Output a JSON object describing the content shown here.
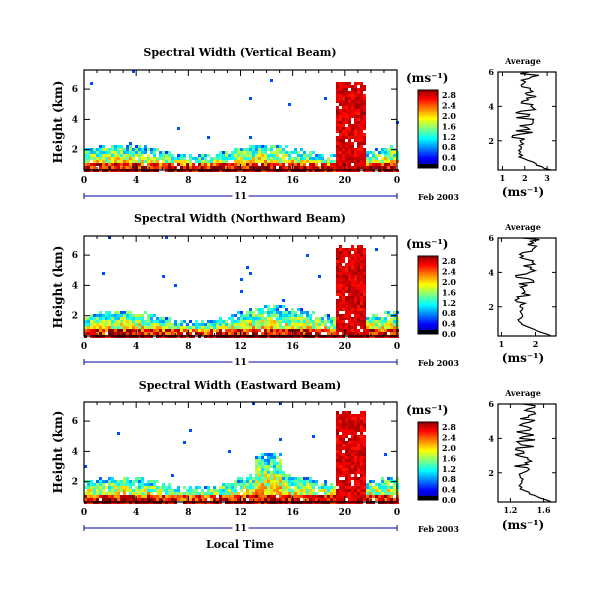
{
  "chart_data": [
    {
      "type": "heatmap",
      "title": "Spectral Width (Vertical Beam)",
      "ylabel": "Height (km)",
      "xticks": [
        "0",
        "4",
        "8",
        "12",
        "16",
        "20",
        "0"
      ],
      "yticks": [
        "2",
        "4",
        "6"
      ],
      "date_day": "11",
      "date_label": "Feb 2003",
      "colorbar": {
        "unit": "(ms⁻¹)",
        "ticks": [
          "0.0",
          "0.4",
          "0.8",
          "1.2",
          "1.6",
          "2.0",
          "2.4",
          "2.8"
        ]
      },
      "profile": {
        "title": "Average",
        "xticks": [
          "1",
          "2",
          "3"
        ],
        "yticks": [
          "2",
          "4",
          "6"
        ],
        "xlabel": "(ms⁻¹)",
        "xlim": [
          0.8,
          3.4
        ]
      }
    },
    {
      "type": "heatmap",
      "title": "Spectral Width (Northward Beam)",
      "ylabel": "Height (km)",
      "xticks": [
        "0",
        "4",
        "8",
        "12",
        "16",
        "20",
        "0"
      ],
      "yticks": [
        "2",
        "4",
        "6"
      ],
      "date_day": "11",
      "date_label": "Feb 2003",
      "colorbar": {
        "unit": "(ms⁻¹)",
        "ticks": [
          "0.0",
          "0.4",
          "0.8",
          "1.2",
          "1.6",
          "2.0",
          "2.4",
          "2.8"
        ]
      },
      "profile": {
        "title": "Average",
        "xticks": [
          "1",
          "2"
        ],
        "yticks": [
          "2",
          "4",
          "6"
        ],
        "xlabel": "(ms⁻¹)",
        "xlim": [
          0.9,
          2.6
        ]
      }
    },
    {
      "type": "heatmap",
      "title": "Spectral Width (Eastward Beam)",
      "ylabel": "Height (km)",
      "xlabel": "Local Time",
      "xticks": [
        "0",
        "4",
        "8",
        "12",
        "16",
        "20",
        "0"
      ],
      "yticks": [
        "2",
        "4",
        "6"
      ],
      "date_day": "11",
      "date_label": "Feb 2003",
      "colorbar": {
        "unit": "(ms⁻¹)",
        "ticks": [
          "0.0",
          "0.4",
          "0.8",
          "1.2",
          "1.6",
          "2.0",
          "2.4",
          "2.8"
        ]
      },
      "profile": {
        "title": "Average",
        "xticks": [
          "1.2",
          "1.6"
        ],
        "yticks": [
          "2",
          "4",
          "6"
        ],
        "xlabel": "(ms⁻¹)",
        "xlim": [
          1.05,
          1.75
        ]
      }
    }
  ],
  "colors": {
    "jet": [
      "#00007f",
      "#0000ff",
      "#0080ff",
      "#00ffff",
      "#80ff80",
      "#ffff00",
      "#ff8000",
      "#ff0000",
      "#7f0000"
    ],
    "frame": "#000000",
    "timeline": "#0000aa"
  }
}
